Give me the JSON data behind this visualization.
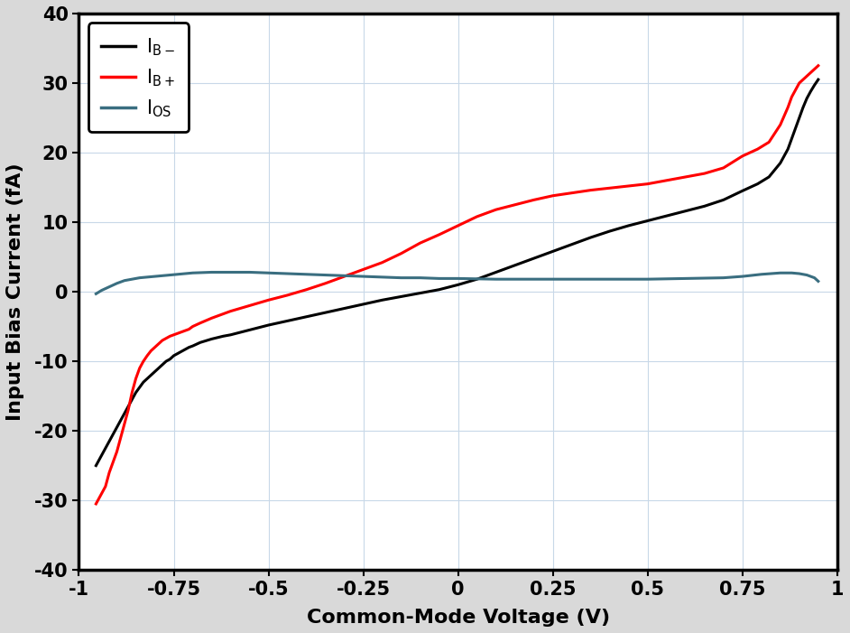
{
  "xlabel": "Common-Mode Voltage (V)",
  "ylabel": "Input Bias Current (fA)",
  "xlim": [
    -1.0,
    1.0
  ],
  "ylim": [
    -40,
    40
  ],
  "xticks": [
    -1.0,
    -0.75,
    -0.5,
    -0.25,
    0.0,
    0.25,
    0.5,
    0.75,
    1.0
  ],
  "xtick_labels": [
    "-1",
    "-0.75",
    "-0.5",
    "-0.25",
    "0",
    "0.25",
    "0.5",
    "0.75",
    "1"
  ],
  "yticks": [
    -40,
    -30,
    -20,
    -10,
    0,
    10,
    20,
    30,
    40
  ],
  "grid_color": "#c8d8e8",
  "plot_bg_color": "#ffffff",
  "outer_bg_color": "#d9d9d9",
  "line_IB_minus": {
    "color": "#000000",
    "linewidth": 2.2,
    "x": [
      -0.955,
      -0.94,
      -0.93,
      -0.92,
      -0.91,
      -0.9,
      -0.89,
      -0.88,
      -0.87,
      -0.86,
      -0.85,
      -0.83,
      -0.81,
      -0.8,
      -0.79,
      -0.78,
      -0.77,
      -0.76,
      -0.75,
      -0.74,
      -0.73,
      -0.72,
      -0.71,
      -0.7,
      -0.68,
      -0.65,
      -0.62,
      -0.6,
      -0.55,
      -0.5,
      -0.45,
      -0.4,
      -0.35,
      -0.3,
      -0.25,
      -0.2,
      -0.15,
      -0.1,
      -0.05,
      0.0,
      0.05,
      0.1,
      0.15,
      0.2,
      0.25,
      0.3,
      0.35,
      0.4,
      0.45,
      0.5,
      0.55,
      0.6,
      0.65,
      0.7,
      0.75,
      0.79,
      0.82,
      0.85,
      0.87,
      0.88,
      0.89,
      0.9,
      0.91,
      0.92,
      0.93,
      0.94,
      0.95
    ],
    "y": [
      -25.0,
      -23.5,
      -22.5,
      -21.5,
      -20.5,
      -19.5,
      -18.5,
      -17.5,
      -16.5,
      -15.5,
      -14.5,
      -13.0,
      -12.0,
      -11.5,
      -11.0,
      -10.5,
      -10.0,
      -9.7,
      -9.2,
      -8.9,
      -8.6,
      -8.3,
      -8.0,
      -7.8,
      -7.3,
      -6.8,
      -6.4,
      -6.2,
      -5.5,
      -4.8,
      -4.2,
      -3.6,
      -3.0,
      -2.4,
      -1.8,
      -1.2,
      -0.7,
      -0.2,
      0.3,
      1.0,
      1.8,
      2.8,
      3.8,
      4.8,
      5.8,
      6.8,
      7.8,
      8.7,
      9.5,
      10.2,
      10.9,
      11.6,
      12.3,
      13.2,
      14.5,
      15.5,
      16.5,
      18.5,
      20.5,
      22.0,
      23.5,
      25.0,
      26.5,
      27.8,
      28.8,
      29.7,
      30.5
    ]
  },
  "line_IB_plus": {
    "color": "#ff0000",
    "linewidth": 2.2,
    "x": [
      -0.955,
      -0.95,
      -0.945,
      -0.94,
      -0.935,
      -0.93,
      -0.925,
      -0.92,
      -0.91,
      -0.9,
      -0.89,
      -0.88,
      -0.87,
      -0.86,
      -0.85,
      -0.84,
      -0.83,
      -0.82,
      -0.81,
      -0.8,
      -0.79,
      -0.78,
      -0.77,
      -0.76,
      -0.75,
      -0.74,
      -0.73,
      -0.72,
      -0.71,
      -0.7,
      -0.68,
      -0.65,
      -0.62,
      -0.6,
      -0.55,
      -0.5,
      -0.45,
      -0.4,
      -0.35,
      -0.3,
      -0.25,
      -0.2,
      -0.15,
      -0.1,
      -0.05,
      0.0,
      0.05,
      0.1,
      0.15,
      0.2,
      0.25,
      0.3,
      0.35,
      0.4,
      0.45,
      0.5,
      0.55,
      0.6,
      0.65,
      0.7,
      0.75,
      0.79,
      0.82,
      0.85,
      0.87,
      0.88,
      0.89,
      0.9,
      0.91,
      0.92,
      0.93,
      0.94,
      0.95
    ],
    "y": [
      -30.5,
      -30.0,
      -29.5,
      -29.0,
      -28.5,
      -28.0,
      -27.0,
      -26.0,
      -24.5,
      -23.0,
      -21.0,
      -19.0,
      -17.0,
      -14.5,
      -12.5,
      -11.0,
      -10.0,
      -9.2,
      -8.5,
      -8.0,
      -7.5,
      -7.0,
      -6.7,
      -6.4,
      -6.2,
      -6.0,
      -5.8,
      -5.6,
      -5.4,
      -5.0,
      -4.5,
      -3.8,
      -3.2,
      -2.8,
      -2.0,
      -1.2,
      -0.5,
      0.3,
      1.2,
      2.2,
      3.2,
      4.2,
      5.5,
      7.0,
      8.2,
      9.5,
      10.8,
      11.8,
      12.5,
      13.2,
      13.8,
      14.2,
      14.6,
      14.9,
      15.2,
      15.5,
      16.0,
      16.5,
      17.0,
      17.8,
      19.5,
      20.5,
      21.5,
      24.0,
      26.5,
      28.0,
      29.0,
      30.0,
      30.5,
      31.0,
      31.5,
      32.0,
      32.5
    ]
  },
  "line_IOS": {
    "color": "#3a6e80",
    "linewidth": 2.2,
    "x": [
      -0.955,
      -0.94,
      -0.92,
      -0.9,
      -0.88,
      -0.86,
      -0.84,
      -0.82,
      -0.8,
      -0.78,
      -0.76,
      -0.74,
      -0.72,
      -0.7,
      -0.65,
      -0.6,
      -0.55,
      -0.5,
      -0.45,
      -0.4,
      -0.35,
      -0.3,
      -0.25,
      -0.2,
      -0.15,
      -0.1,
      -0.05,
      0.0,
      0.1,
      0.2,
      0.3,
      0.4,
      0.5,
      0.6,
      0.7,
      0.75,
      0.8,
      0.85,
      0.88,
      0.9,
      0.92,
      0.94,
      0.95
    ],
    "y": [
      -0.3,
      0.2,
      0.7,
      1.2,
      1.6,
      1.8,
      2.0,
      2.1,
      2.2,
      2.3,
      2.4,
      2.5,
      2.6,
      2.7,
      2.8,
      2.8,
      2.8,
      2.7,
      2.6,
      2.5,
      2.4,
      2.3,
      2.2,
      2.1,
      2.0,
      2.0,
      1.9,
      1.9,
      1.8,
      1.8,
      1.8,
      1.8,
      1.8,
      1.9,
      2.0,
      2.2,
      2.5,
      2.7,
      2.7,
      2.6,
      2.4,
      2.0,
      1.5
    ]
  },
  "legend_loc": "upper left",
  "legend_fontsize": 15,
  "tick_fontsize": 15,
  "axis_label_fontsize": 16,
  "spine_linewidth": 2.5,
  "figsize": [
    9.42,
    7.01
  ],
  "dpi": 100
}
